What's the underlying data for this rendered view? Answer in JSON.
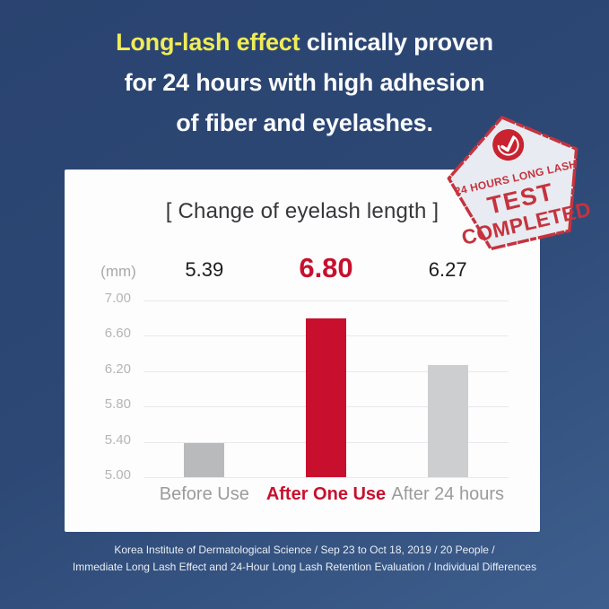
{
  "heading": {
    "highlight": "Long-lash effect",
    "line1_rest": " clinically proven",
    "line2": "for 24 hours with high adhesion",
    "line3": "of fiber and eyelashes.",
    "highlight_color": "#f0ec58",
    "text_color": "#fafbfd"
  },
  "badge": {
    "arc_text": "24 HOURS LONG LASH",
    "title": "TEST",
    "subtitle": "COMPLETED",
    "color": "#c5333e",
    "check_icon": "checkmark-in-red-circle"
  },
  "chart_data": {
    "type": "bar",
    "title": "[ Change of eyelash length ]",
    "unit_label": "(mm)",
    "ylabel": "mm",
    "xlabel": "",
    "categories": [
      "Before Use",
      "After One Use",
      "After 24 hours"
    ],
    "values": [
      5.39,
      6.8,
      6.27
    ],
    "value_labels": [
      "5.39",
      "6.80",
      "6.27"
    ],
    "highlight_index": 1,
    "y_ticks": [
      "7.00",
      "6.60",
      "6.20",
      "5.80",
      "5.40",
      "5.00"
    ],
    "ylim": [
      5.0,
      7.0
    ],
    "grid": true,
    "legend": false,
    "bar_colors": [
      "#b9babc",
      "#c8102e",
      "#cdced0"
    ],
    "highlight_color": "#c8102e",
    "gridline_color": "#e9e9eb"
  },
  "footer": {
    "line1": "Korea Institute of Dermatological Science / Sep 23 to Oct 18, 2019 / 20 People /",
    "line2": "Immediate Long Lash Effect and 24-Hour Long Lash Retention Evaluation / Individual Differences"
  }
}
